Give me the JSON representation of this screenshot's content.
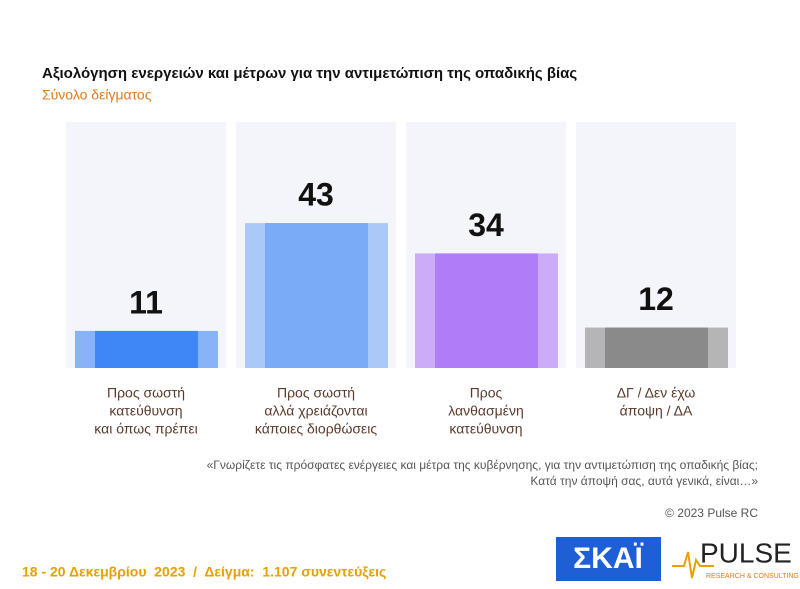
{
  "chart_data": {
    "type": "bar",
    "title": "Αξιολόγηση ενεργειών και μέτρων για την αντιμετώπιση της οπαδικής βίας",
    "subtitle": "Σύνολο δείγματος",
    "categories": [
      [
        "Προς σωστή",
        "κατεύθυνση",
        "και όπως πρέπει"
      ],
      [
        "Προς σωστή",
        "αλλά χρειάζονται",
        "κάποιες διορθώσεις"
      ],
      [
        "Προς",
        "λανθασμένη",
        "κατεύθυνση"
      ],
      [
        "ΔΓ / Δεν έχω",
        "άποψη / ΔΑ"
      ]
    ],
    "values": [
      11,
      43,
      34,
      12
    ],
    "colors": [
      "#3f87f7",
      "#7aabf7",
      "#b07cf7",
      "#8a8a8a"
    ],
    "question": [
      "«Γνωρίζετε τις πρόσφατες ενέργειες και μέτρα της κυβέρνησης, για την αντιμετώπιση της οπαδικής βίας;",
      "Κατά την άποψή σας, αυτά γενικά, είναι…»"
    ],
    "copyright": "© 2023 Pulse RC",
    "footer": "18 - 20 Δεκεμβρίου  2023  /  Δείγμα:  1.107 συνεντεύξεις",
    "logos": {
      "skai": "ΣΚΑΪ",
      "pulse": "PULSE",
      "pulse_sub": "RESEARCH & CONSULTING"
    }
  }
}
